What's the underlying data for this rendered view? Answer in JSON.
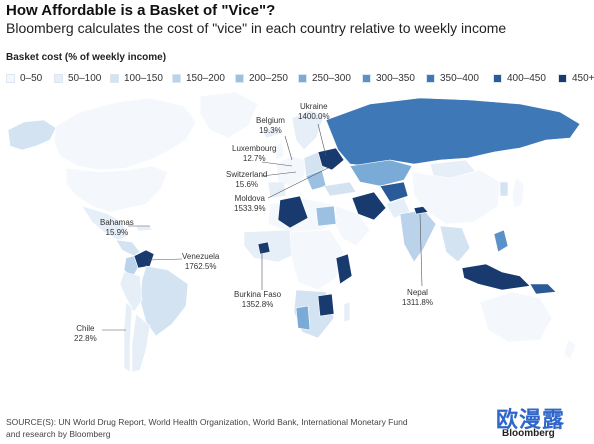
{
  "header": {
    "title": "How Affordable is a Basket of \"Vice\"?",
    "subtitle": "Bloomberg calculates the cost of \"vice\" in each country relative to weekly income"
  },
  "legend": {
    "title": "Basket cost (% of weekly income)",
    "items": [
      {
        "label": "0–50",
        "color": "#f4f8fc"
      },
      {
        "label": "50–100",
        "color": "#e6eef7"
      },
      {
        "label": "100–150",
        "color": "#d4e3f2"
      },
      {
        "label": "150–200",
        "color": "#bad3eb"
      },
      {
        "label": "200–250",
        "color": "#9cc0e2"
      },
      {
        "label": "250–300",
        "color": "#7aaad6"
      },
      {
        "label": "300–350",
        "color": "#5a91c8"
      },
      {
        "label": "350–400",
        "color": "#3f78b6"
      },
      {
        "label": "400–450",
        "color": "#2a5b98"
      },
      {
        "label": "450+",
        "color": "#183a6e"
      }
    ]
  },
  "callouts": {
    "ukraine": {
      "name": "Ukraine",
      "value": "1400.0%"
    },
    "belgium": {
      "name": "Belgium",
      "value": "19.3%"
    },
    "luxembourg": {
      "name": "Luxembourg",
      "value": "12.7%"
    },
    "switzerland": {
      "name": "Switzerland",
      "value": "15.6%"
    },
    "moldova": {
      "name": "Moldova",
      "value": "1533.9%"
    },
    "bahamas": {
      "name": "Bahamas",
      "value": "15.9%"
    },
    "venezuela": {
      "name": "Venezuela",
      "value": "1762.5%"
    },
    "burkina_faso": {
      "name": "Burkina Faso",
      "value": "1352.8%"
    },
    "nepal": {
      "name": "Nepal",
      "value": "1311.8%"
    },
    "chile": {
      "name": "Chile",
      "value": "22.8%"
    }
  },
  "footer": {
    "source_line1": "SOURCE(S): UN World Drug Report, World Health Organization, World Bank, International Monetary Fund",
    "source_line2": "and research by Bloomberg",
    "brand": "Bloomberg",
    "watermark": "欧漫露"
  }
}
